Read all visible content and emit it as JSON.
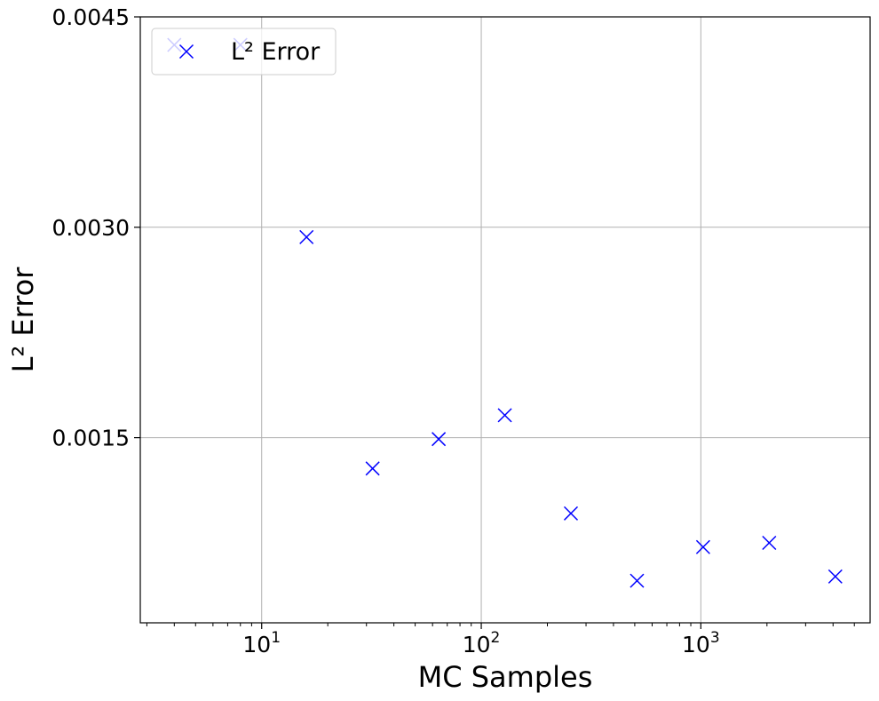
{
  "chart_data": {
    "type": "scatter",
    "title": "",
    "xlabel": "MC Samples",
    "ylabel": "L² Error",
    "xscale": "log",
    "xlim": [
      2.8,
      5900
    ],
    "ylim": [
      0.00018,
      0.0045
    ],
    "grid": true,
    "legend_position": "top-left",
    "x_tick_labels": [
      {
        "base": "10",
        "exp": "1",
        "value": 10
      },
      {
        "base": "10",
        "exp": "2",
        "value": 100
      },
      {
        "base": "10",
        "exp": "3",
        "value": 1000
      }
    ],
    "y_ticks": [
      0.0015,
      0.003,
      0.0045
    ],
    "y_tick_labels": [
      "0.0015",
      "0.0030",
      "0.0045"
    ],
    "series": [
      {
        "name": "L² Error",
        "color": "#0000ff",
        "marker": "x",
        "x": [
          4,
          8,
          16,
          32,
          64,
          128,
          256,
          512,
          1024,
          2048,
          4096
        ],
        "y": [
          0.0043,
          0.0043,
          0.00293,
          0.00128,
          0.00149,
          0.00166,
          0.00096,
          0.00048,
          0.00072,
          0.00075,
          0.00051
        ]
      }
    ]
  }
}
